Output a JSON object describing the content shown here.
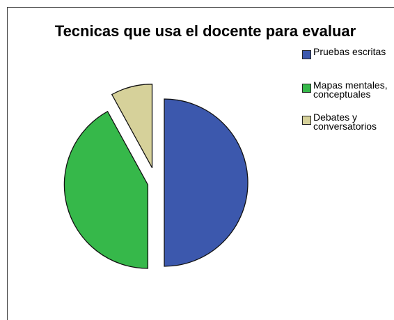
{
  "chart_data": {
    "type": "pie",
    "title": "Tecnicas que usa el docente para evaluar",
    "categories": [
      "Pruebas escritas",
      "Mapas mentales, conceptuales",
      "Debates y conversatorios"
    ],
    "values": [
      50,
      42,
      8
    ],
    "colors": [
      "#3c58ad",
      "#36b84a",
      "#d6d19a"
    ],
    "legend": "top-right"
  }
}
